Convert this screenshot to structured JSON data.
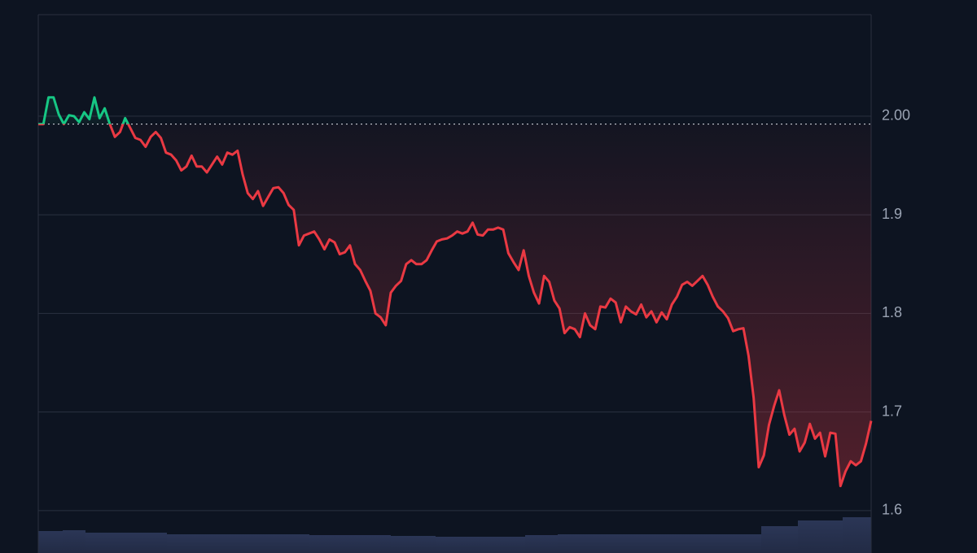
{
  "chart_data": {
    "type": "line",
    "values": [
      1.992,
      1.992,
      2.019,
      2.019,
      2.002,
      1.992,
      2.001,
      2.0,
      1.994,
      2.004,
      1.997,
      2.019,
      1.998,
      2.008,
      1.992,
      1.979,
      1.984,
      1.998,
      1.988,
      1.978,
      1.976,
      1.969,
      1.979,
      1.984,
      1.978,
      1.963,
      1.961,
      1.955,
      1.945,
      1.949,
      1.96,
      1.949,
      1.949,
      1.943,
      1.951,
      1.959,
      1.951,
      1.963,
      1.961,
      1.965,
      1.941,
      1.922,
      1.916,
      1.924,
      1.909,
      1.918,
      1.927,
      1.928,
      1.922,
      1.91,
      1.905,
      1.869,
      1.879,
      1.881,
      1.883,
      1.875,
      1.865,
      1.875,
      1.872,
      1.86,
      1.862,
      1.869,
      1.85,
      1.844,
      1.833,
      1.823,
      1.8,
      1.796,
      1.788,
      1.821,
      1.828,
      1.833,
      1.85,
      1.854,
      1.85,
      1.85,
      1.854,
      1.864,
      1.873,
      1.875,
      1.876,
      1.879,
      1.883,
      1.881,
      1.883,
      1.892,
      1.88,
      1.879,
      1.885,
      1.885,
      1.887,
      1.885,
      1.861,
      1.852,
      1.844,
      1.864,
      1.838,
      1.821,
      1.81,
      1.838,
      1.832,
      1.813,
      1.805,
      1.78,
      1.786,
      1.784,
      1.776,
      1.8,
      1.788,
      1.784,
      1.807,
      1.806,
      1.815,
      1.811,
      1.791,
      1.807,
      1.802,
      1.799,
      1.809,
      1.796,
      1.802,
      1.791,
      1.801,
      1.794,
      1.809,
      1.817,
      1.829,
      1.832,
      1.828,
      1.833,
      1.838,
      1.829,
      1.817,
      1.807,
      1.802,
      1.795,
      1.782,
      1.784,
      1.785,
      1.757,
      1.714,
      1.644,
      1.656,
      1.687,
      1.706,
      1.722,
      1.697,
      1.677,
      1.683,
      1.66,
      1.669,
      1.688,
      1.673,
      1.679,
      1.655,
      1.679,
      1.678,
      1.625,
      1.64,
      1.65,
      1.646,
      1.65,
      1.668,
      1.691
    ],
    "baseline": 1.992,
    "up_color": "#16c784",
    "down_color": "#ea3943",
    "ylim": [
      1.557,
      2.103
    ],
    "yticks": [
      {
        "value": 2,
        "label": "2.00"
      },
      1.9,
      1.8,
      1.7,
      1.6
    ],
    "grid": true
  }
}
